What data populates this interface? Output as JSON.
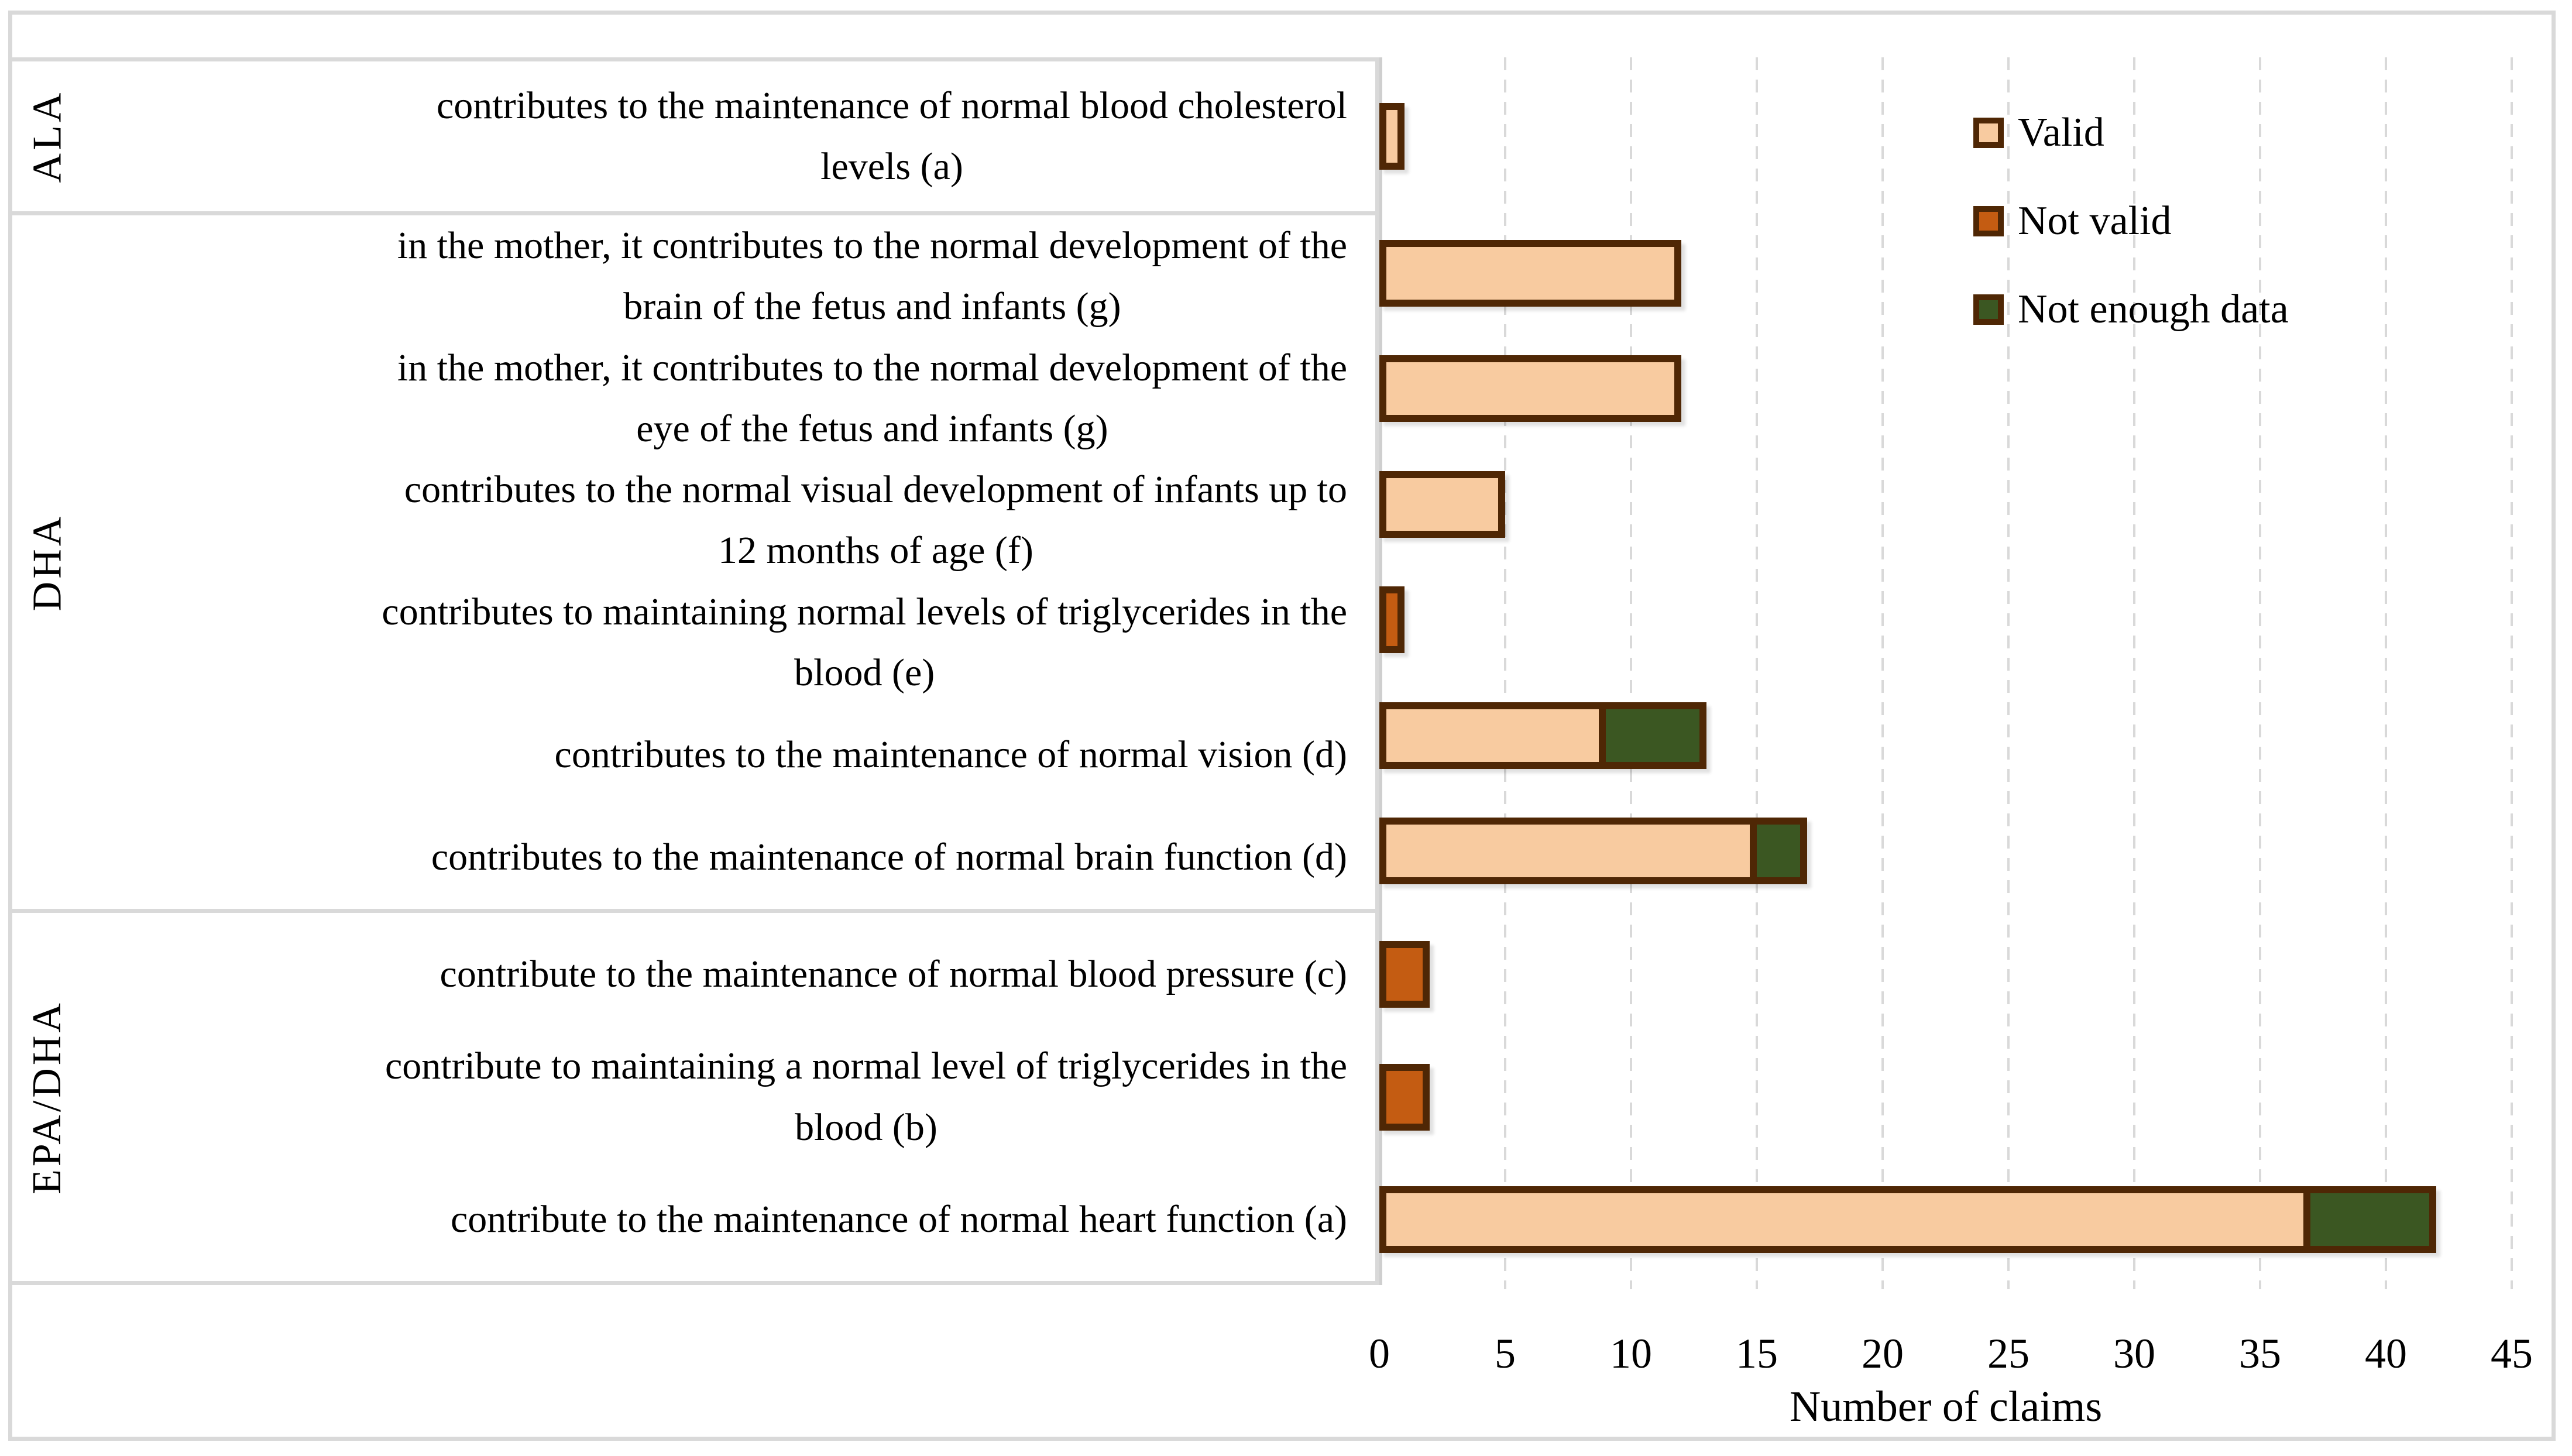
{
  "figure": {
    "background": "#FFFFFF",
    "frame_color": "#D9D9D9"
  },
  "colors": {
    "valid": "#F8CBA0",
    "not_valid": "#C45C12",
    "not_enough_data": "#3B5722",
    "bar_border": "#4F2705",
    "grid": "#D9D9D9",
    "axis_line": "#CFCFCF",
    "text": "#000000"
  },
  "legend": {
    "position": "top-right",
    "items": [
      {
        "key": "valid",
        "label": "Valid"
      },
      {
        "key": "not_valid",
        "label": "Not valid"
      },
      {
        "key": "not_enough_data",
        "label": "Not enough data"
      }
    ]
  },
  "chart_data": {
    "type": "bar",
    "orientation": "horizontal",
    "stacked": true,
    "title": "",
    "xlabel": "Number of claims",
    "ylabel": "",
    "xlim": [
      0,
      45
    ],
    "x_ticks": [
      0,
      5,
      10,
      15,
      20,
      25,
      30,
      35,
      40,
      45
    ],
    "grid": "vertical-dashed",
    "series_order": [
      "valid",
      "not_valid",
      "not_enough_data"
    ],
    "groups": [
      {
        "name": "ALA",
        "claims": [
          {
            "label": "contributes to the maintenance of normal blood cholesterol\nlevels (a)",
            "values": {
              "valid": 1,
              "not_valid": 0,
              "not_enough_data": 0
            }
          }
        ]
      },
      {
        "name": "DHA",
        "claims": [
          {
            "label": "in the mother, it contributes to the normal development of the\nbrain of the fetus and infants (g)",
            "values": {
              "valid": 12,
              "not_valid": 0,
              "not_enough_data": 0
            }
          },
          {
            "label": "in the mother, it contributes to the normal development of the\neye of the fetus and infants (g)",
            "values": {
              "valid": 12,
              "not_valid": 0,
              "not_enough_data": 0
            }
          },
          {
            "label": "contributes to the normal visual development of infants up to\n12 months of age (f)",
            "values": {
              "valid": 5,
              "not_valid": 0,
              "not_enough_data": 0
            }
          },
          {
            "label": "contributes to maintaining normal levels of triglycerides in the\nblood (e)",
            "values": {
              "valid": 0,
              "not_valid": 1,
              "not_enough_data": 0
            }
          },
          {
            "label": "contributes to the maintenance of normal vision (d)",
            "values": {
              "valid": 9,
              "not_valid": 0,
              "not_enough_data": 4
            }
          },
          {
            "label": "contributes to the maintenance of normal brain function (d)",
            "values": {
              "valid": 15,
              "not_valid": 0,
              "not_enough_data": 2
            }
          }
        ]
      },
      {
        "name": "EPA/DHA",
        "claims": [
          {
            "label": "contribute to the maintenance of normal blood pressure (c)",
            "values": {
              "valid": 0,
              "not_valid": 2,
              "not_enough_data": 0
            }
          },
          {
            "label": "contribute to maintaining a normal level of triglycerides in the\nblood (b)",
            "values": {
              "valid": 0,
              "not_valid": 2,
              "not_enough_data": 0
            }
          },
          {
            "label": "contribute to the maintenance of normal heart function (a)",
            "values": {
              "valid": 37,
              "not_valid": 0,
              "not_enough_data": 5
            }
          }
        ]
      }
    ]
  }
}
